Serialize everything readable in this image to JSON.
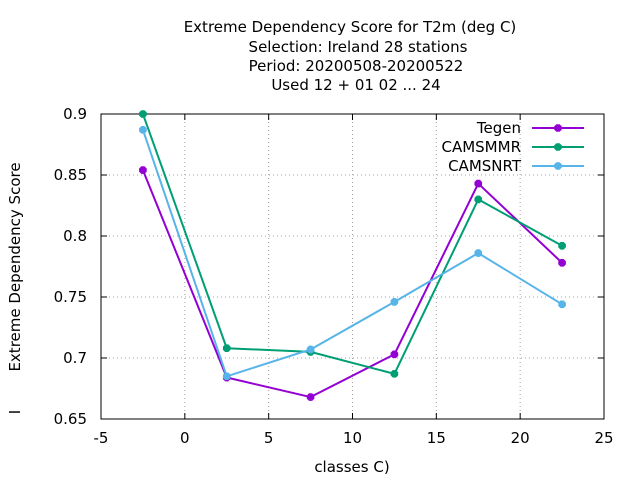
{
  "chart_data": {
    "type": "line",
    "title_lines": [
      "Extreme Dependency Score  for T2m (deg C)",
      "Selection: Ireland     28 stations",
      "Period: 20200508-20200522",
      "Used  12 + 01 02 ... 24"
    ],
    "xlabel": "classes C)",
    "ylabel": "Extreme Dependency Score",
    "ylabel_extra": "I",
    "xlim": [
      -5,
      25
    ],
    "ylim": [
      0.65,
      0.9
    ],
    "x_ticks": [
      -5,
      0,
      5,
      10,
      15,
      20,
      25
    ],
    "x_tick_labels": [
      "-5",
      "0",
      "5",
      "10",
      "15",
      "20",
      "25"
    ],
    "y_ticks": [
      0.65,
      0.7,
      0.75,
      0.8,
      0.85,
      0.9
    ],
    "y_tick_labels": [
      "0.65",
      "0.7",
      "0.75",
      "0.8",
      "0.85",
      "0.9"
    ],
    "grid": true,
    "legend_position": "top-right",
    "x": [
      -2.5,
      2.5,
      7.5,
      12.5,
      17.5,
      22.5
    ],
    "series": [
      {
        "name": "Tegen",
        "color": "#9400d3",
        "values": [
          0.854,
          0.684,
          0.668,
          0.703,
          0.843,
          0.778
        ]
      },
      {
        "name": "CAMSMMR",
        "color": "#009e73",
        "values": [
          0.9,
          0.708,
          0.705,
          0.687,
          0.83,
          0.792
        ]
      },
      {
        "name": "CAMSNRT",
        "color": "#56b4e9",
        "values": [
          0.887,
          0.685,
          0.707,
          0.746,
          0.786,
          0.744
        ]
      }
    ]
  }
}
